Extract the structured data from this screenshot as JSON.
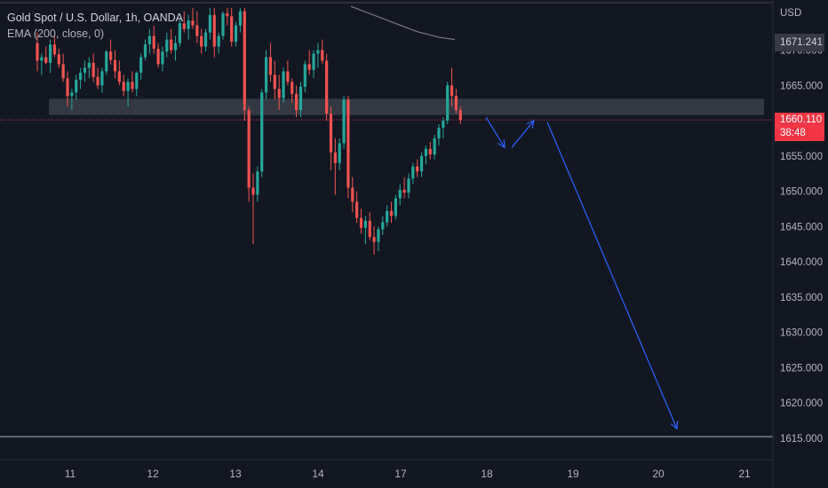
{
  "legend": {
    "title": "Gold Spot / U.S. Dollar, 1h, OANDA",
    "indicator": "EMA (200, close, 0)"
  },
  "axis": {
    "currency": "USD",
    "y_ticks": [
      "1670.000",
      "1665.000",
      "1660.000",
      "1655.000",
      "1650.000",
      "1645.000",
      "1640.000",
      "1635.000",
      "1630.000",
      "1625.000",
      "1620.000",
      "1615.000"
    ],
    "x_ticks": [
      "11",
      "12",
      "13",
      "14",
      "17",
      "18",
      "19",
      "20",
      "21"
    ]
  },
  "price_tags": {
    "ema_value": "1671.241",
    "last_price": "1660.110",
    "countdown": "38:48"
  },
  "colors": {
    "background": "#131722",
    "bull": "#26a69a",
    "bear": "#ef5350",
    "ema": "#787b86",
    "last_price_line": "#f23645",
    "zone": "#363a45",
    "projection": "#2962ff",
    "axis_text": "#b2b5be"
  },
  "chart_data": {
    "type": "candlestick",
    "title": "Gold Spot / U.S. Dollar, 1h, OANDA",
    "x_categories": [
      "11",
      "12",
      "13",
      "14",
      "17",
      "18",
      "19",
      "20",
      "21"
    ],
    "ylim": [
      1612.5,
      1676
    ],
    "last_price": 1660.11,
    "ema_200_last": 1671.241,
    "resistance_zone": [
      1660.8,
      1663.1
    ],
    "support_line": 1615.2,
    "candles_ohlc": [
      [
        1671.0,
        1672.5,
        1667.0,
        1668.5
      ],
      [
        1668.5,
        1669.5,
        1666.5,
        1669.0
      ],
      [
        1669.0,
        1670.5,
        1668.0,
        1668.2
      ],
      [
        1668.2,
        1671.5,
        1666.8,
        1670.8
      ],
      [
        1670.8,
        1672.0,
        1669.0,
        1669.4
      ],
      [
        1669.4,
        1670.2,
        1667.5,
        1668.0
      ],
      [
        1668.0,
        1669.5,
        1665.5,
        1666.0
      ],
      [
        1666.0,
        1667.0,
        1662.0,
        1663.5
      ],
      [
        1663.5,
        1664.5,
        1661.5,
        1664.0
      ],
      [
        1664.0,
        1666.5,
        1663.0,
        1665.8
      ],
      [
        1665.8,
        1667.5,
        1664.5,
        1666.8
      ],
      [
        1666.8,
        1668.5,
        1665.5,
        1667.5
      ],
      [
        1667.5,
        1669.0,
        1666.0,
        1668.2
      ],
      [
        1668.2,
        1669.5,
        1665.5,
        1666.2
      ],
      [
        1666.2,
        1667.5,
        1664.5,
        1665.0
      ],
      [
        1665.0,
        1667.5,
        1664.0,
        1667.0
      ],
      [
        1667.0,
        1670.0,
        1666.5,
        1669.8
      ],
      [
        1669.8,
        1671.5,
        1668.0,
        1668.6
      ],
      [
        1668.6,
        1670.0,
        1666.0,
        1667.0
      ],
      [
        1667.0,
        1668.5,
        1665.0,
        1665.5
      ],
      [
        1665.5,
        1666.5,
        1663.5,
        1664.2
      ],
      [
        1664.2,
        1666.0,
        1662.0,
        1665.5
      ],
      [
        1665.5,
        1667.0,
        1664.0,
        1664.5
      ],
      [
        1664.5,
        1667.0,
        1663.5,
        1666.8
      ],
      [
        1666.8,
        1669.5,
        1665.8,
        1669.0
      ],
      [
        1669.0,
        1671.5,
        1668.5,
        1670.8
      ],
      [
        1670.8,
        1673.0,
        1669.5,
        1672.0
      ],
      [
        1672.0,
        1673.5,
        1669.5,
        1670.2
      ],
      [
        1670.2,
        1671.0,
        1667.5,
        1668.0
      ],
      [
        1668.0,
        1670.5,
        1667.0,
        1669.8
      ],
      [
        1669.8,
        1672.5,
        1669.0,
        1671.5
      ],
      [
        1671.5,
        1673.0,
        1669.5,
        1670.0
      ],
      [
        1670.0,
        1672.0,
        1668.5,
        1671.0
      ],
      [
        1671.0,
        1674.5,
        1670.5,
        1673.8
      ],
      [
        1673.8,
        1675.5,
        1672.5,
        1673.0
      ],
      [
        1673.0,
        1675.0,
        1671.5,
        1674.2
      ],
      [
        1674.2,
        1676.0,
        1673.0,
        1673.5
      ],
      [
        1673.5,
        1675.5,
        1671.0,
        1672.0
      ],
      [
        1672.0,
        1673.0,
        1669.5,
        1670.5
      ],
      [
        1670.5,
        1673.0,
        1669.8,
        1672.5
      ],
      [
        1672.5,
        1676.0,
        1671.5,
        1675.0
      ],
      [
        1675.0,
        1676.0,
        1669.0,
        1670.5
      ],
      [
        1670.5,
        1672.5,
        1669.5,
        1672.0
      ],
      [
        1672.0,
        1675.5,
        1671.5,
        1675.2
      ],
      [
        1675.2,
        1676.0,
        1673.5,
        1674.8
      ],
      [
        1674.8,
        1676.0,
        1670.5,
        1671.2
      ],
      [
        1671.2,
        1674.0,
        1670.5,
        1673.5
      ],
      [
        1673.5,
        1676.0,
        1672.5,
        1675.5
      ],
      [
        1675.5,
        1676.0,
        1660.0,
        1661.5
      ],
      [
        1661.5,
        1662.0,
        1648.5,
        1650.5
      ],
      [
        1650.5,
        1652.5,
        1642.5,
        1649.5
      ],
      [
        1649.5,
        1653.5,
        1648.5,
        1652.8
      ],
      [
        1652.8,
        1664.5,
        1652.0,
        1664.0
      ],
      [
        1664.0,
        1670.0,
        1663.0,
        1669.0
      ],
      [
        1669.0,
        1671.0,
        1665.5,
        1666.5
      ],
      [
        1666.5,
        1668.5,
        1663.0,
        1664.5
      ],
      [
        1664.5,
        1666.5,
        1661.5,
        1663.2
      ],
      [
        1663.2,
        1667.5,
        1662.5,
        1667.0
      ],
      [
        1667.0,
        1668.5,
        1665.0,
        1665.5
      ],
      [
        1665.5,
        1666.0,
        1662.5,
        1663.8
      ],
      [
        1663.8,
        1665.0,
        1660.5,
        1661.5
      ],
      [
        1661.5,
        1665.5,
        1660.5,
        1664.8
      ],
      [
        1664.8,
        1668.5,
        1664.0,
        1668.0
      ],
      [
        1668.0,
        1670.0,
        1666.5,
        1667.2
      ],
      [
        1667.2,
        1670.0,
        1666.0,
        1669.5
      ],
      [
        1669.5,
        1671.0,
        1667.5,
        1670.0
      ],
      [
        1670.0,
        1671.5,
        1668.0,
        1668.5
      ],
      [
        1668.5,
        1669.5,
        1660.0,
        1661.0
      ],
      [
        1661.0,
        1662.0,
        1653.0,
        1655.5
      ],
      [
        1655.5,
        1657.5,
        1649.5,
        1654.0
      ],
      [
        1654.0,
        1657.5,
        1653.0,
        1656.8
      ],
      [
        1656.8,
        1663.5,
        1656.0,
        1663.0
      ],
      [
        1663.0,
        1663.5,
        1649.0,
        1650.5
      ],
      [
        1650.5,
        1652.0,
        1647.0,
        1648.5
      ],
      [
        1648.5,
        1650.0,
        1645.5,
        1646.2
      ],
      [
        1646.2,
        1647.5,
        1644.0,
        1644.8
      ],
      [
        1644.8,
        1646.5,
        1642.5,
        1645.8
      ],
      [
        1645.8,
        1647.0,
        1643.0,
        1643.5
      ],
      [
        1643.5,
        1645.0,
        1641.0,
        1642.8
      ],
      [
        1642.8,
        1645.0,
        1641.5,
        1644.6
      ],
      [
        1644.6,
        1646.5,
        1643.8,
        1645.6
      ],
      [
        1645.6,
        1648.0,
        1645.0,
        1647.2
      ],
      [
        1647.2,
        1648.5,
        1645.5,
        1646.5
      ],
      [
        1646.5,
        1649.5,
        1646.0,
        1649.0
      ],
      [
        1649.0,
        1651.0,
        1648.0,
        1650.2
      ],
      [
        1650.2,
        1652.0,
        1649.0,
        1649.8
      ],
      [
        1649.8,
        1652.5,
        1649.0,
        1651.8
      ],
      [
        1651.8,
        1654.0,
        1651.0,
        1653.5
      ],
      [
        1653.5,
        1654.5,
        1652.0,
        1652.8
      ],
      [
        1652.8,
        1655.5,
        1652.0,
        1655.0
      ],
      [
        1655.0,
        1656.5,
        1653.8,
        1656.0
      ],
      [
        1656.0,
        1657.0,
        1654.5,
        1655.2
      ],
      [
        1655.2,
        1658.0,
        1654.5,
        1657.5
      ],
      [
        1657.5,
        1659.5,
        1656.5,
        1659.0
      ],
      [
        1659.0,
        1660.5,
        1657.5,
        1660.0
      ],
      [
        1660.0,
        1665.5,
        1659.5,
        1665.0
      ],
      [
        1665.0,
        1667.5,
        1662.0,
        1663.5
      ],
      [
        1663.5,
        1664.5,
        1661.0,
        1661.5
      ],
      [
        1661.5,
        1662.0,
        1659.5,
        1660.11
      ]
    ],
    "projection_path": [
      [
        1660.5,
        "18 early"
      ],
      [
        1656.0,
        "18 midday"
      ],
      [
        1660.0,
        "18 late"
      ],
      [
        1616.5,
        "20"
      ]
    ]
  }
}
